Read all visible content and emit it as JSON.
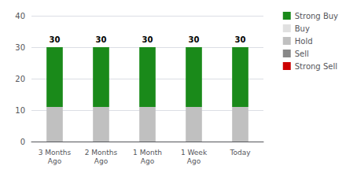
{
  "chart_data": {
    "type": "bar",
    "stacked": true,
    "categories": [
      "3 Months\nAgo",
      "2 Months\nAgo",
      "1 Month\nAgo",
      "1 Week\nAgo",
      "Today"
    ],
    "series": [
      {
        "name": "Strong Buy",
        "color": "#1a8a1a",
        "values": [
          19,
          19,
          19,
          19,
          19
        ]
      },
      {
        "name": "Buy",
        "color": "#e0e0e0",
        "values": [
          0,
          0,
          0,
          0,
          0
        ]
      },
      {
        "name": "Hold",
        "color": "#c0c0c0",
        "values": [
          11,
          11,
          11,
          11,
          11
        ]
      },
      {
        "name": "Sell",
        "color": "#888888",
        "values": [
          0,
          0,
          0,
          0,
          0
        ]
      },
      {
        "name": "Strong Sell",
        "color": "#cc0000",
        "values": [
          0,
          0,
          0,
          0,
          0
        ]
      }
    ],
    "totals": [
      30,
      30,
      30,
      30,
      30
    ],
    "ylim": [
      0,
      40
    ],
    "yticks": [
      0,
      10,
      20,
      30,
      40
    ],
    "grid": true,
    "legend": "right"
  }
}
